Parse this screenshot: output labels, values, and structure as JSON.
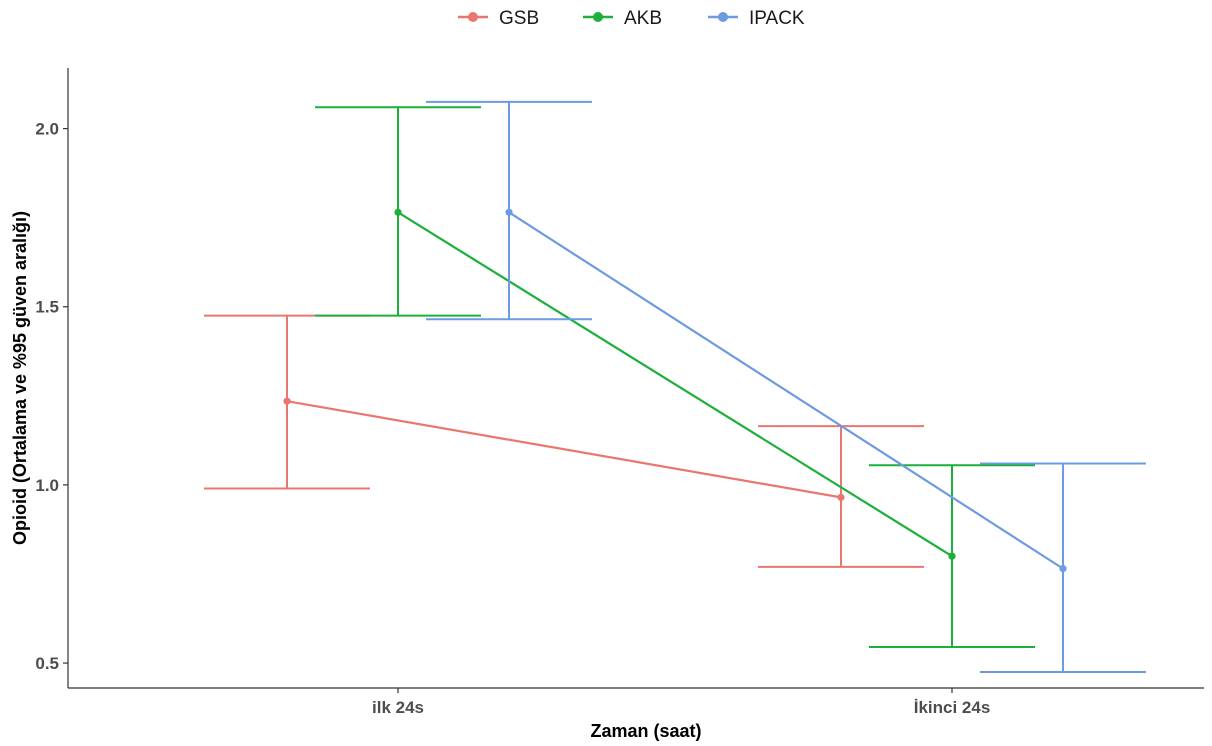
{
  "chart_data": {
    "type": "line",
    "title": "",
    "xlabel": "Zaman (saat)",
    "ylabel": "Opioid (Ortalama ve %95 güven aralığı)",
    "categories": [
      "ilk 24s",
      "İkinci 24s"
    ],
    "ylim": [
      0.43,
      2.17
    ],
    "yticks": [
      0.5,
      1.0,
      1.5,
      2.0
    ],
    "ytick_labels": [
      "0.5",
      "1.0",
      "1.5",
      "2.0"
    ],
    "grid": false,
    "legend_position": "top",
    "series": [
      {
        "name": "GSB",
        "color": "#E8776F",
        "mean": [
          1.235,
          0.965
        ],
        "lower": [
          0.99,
          0.77
        ],
        "upper": [
          1.475,
          1.165
        ]
      },
      {
        "name": "AKB",
        "color": "#1BB03C",
        "mean": [
          1.765,
          0.8
        ],
        "lower": [
          1.475,
          0.545
        ],
        "upper": [
          2.06,
          1.055
        ]
      },
      {
        "name": "IPACK",
        "color": "#6C9BDF",
        "mean": [
          1.765,
          0.765
        ],
        "lower": [
          1.465,
          0.475
        ],
        "upper": [
          2.075,
          1.06
        ]
      }
    ]
  }
}
